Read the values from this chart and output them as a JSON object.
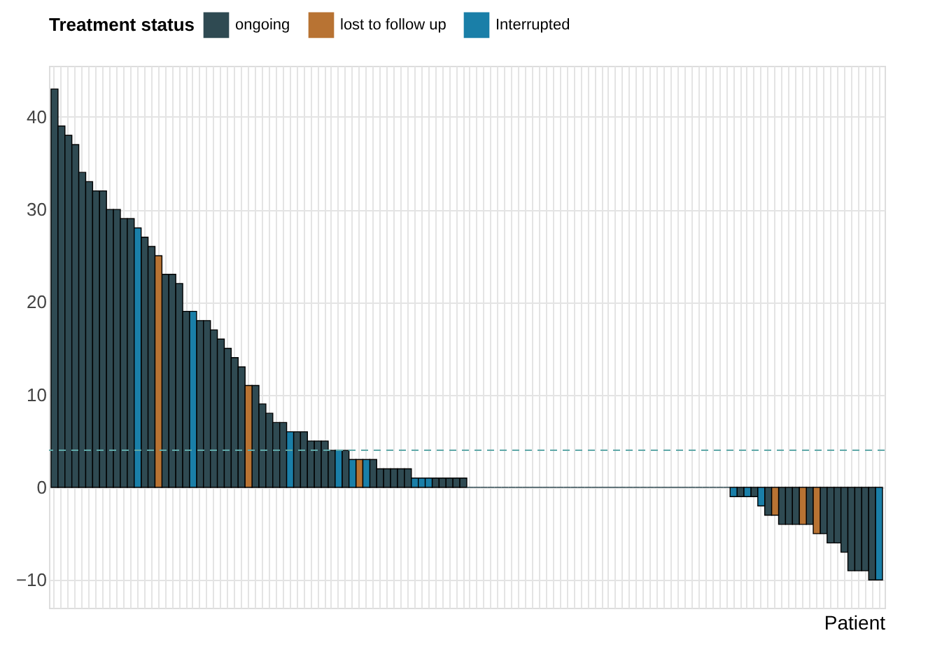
{
  "chart_data": {
    "type": "bar",
    "xlabel": "Patient",
    "legend_title": "Treatment status",
    "categories": [
      null,
      null,
      null,
      null,
      null,
      null,
      null,
      null,
      null,
      null,
      null,
      null,
      null,
      null,
      null,
      null,
      null,
      null,
      null,
      null,
      null,
      null,
      null,
      null,
      null,
      null,
      null,
      null,
      null,
      null,
      null,
      null,
      null,
      null,
      null,
      null,
      null,
      null,
      null,
      null,
      null,
      null,
      null,
      null,
      null,
      null,
      null,
      null,
      null,
      null,
      null,
      null,
      null,
      null,
      null,
      null,
      null,
      null,
      null,
      null,
      null,
      null,
      null,
      null,
      null,
      null,
      null,
      null,
      null,
      null,
      null,
      null,
      null,
      null,
      null,
      null,
      null,
      null,
      null,
      null,
      null,
      null,
      null,
      null,
      null,
      null,
      null,
      null,
      null,
      null,
      null,
      null,
      null,
      null,
      null,
      null,
      null,
      null,
      null,
      null,
      null,
      null,
      null,
      null,
      null,
      null,
      null,
      null,
      null,
      null,
      null,
      null,
      null,
      null,
      null,
      null,
      null,
      null,
      null,
      null
    ],
    "series": [
      {
        "name": "ongoing",
        "color": "#2f4a52",
        "values": [
          43,
          39,
          38,
          37,
          34,
          33,
          32,
          32,
          30,
          30,
          29,
          29,
          null,
          27,
          26,
          null,
          23,
          23,
          22,
          19,
          null,
          18,
          18,
          17,
          16,
          15,
          14,
          13,
          null,
          11,
          9,
          8,
          7,
          7,
          null,
          6,
          6,
          5,
          5,
          5,
          4,
          null,
          4,
          null,
          null,
          null,
          3,
          2,
          2,
          2,
          2,
          2,
          null,
          null,
          null,
          1,
          1,
          1,
          1,
          1,
          0,
          0,
          0,
          0,
          0,
          0,
          0,
          0,
          0,
          0,
          0,
          0,
          0,
          0,
          0,
          0,
          0,
          0,
          0,
          0,
          0,
          0,
          0,
          0,
          0,
          0,
          0,
          0,
          0,
          0,
          0,
          0,
          0,
          0,
          0,
          0,
          0,
          0,
          null,
          -1,
          null,
          -1,
          null,
          -3,
          null,
          -4,
          -4,
          -4,
          null,
          -4,
          null,
          -5,
          -6,
          -6,
          -7,
          -9,
          -9,
          -9,
          -10,
          null
        ]
      },
      {
        "name": "lost to follow up",
        "color": "#b87333",
        "values": [
          null,
          null,
          null,
          null,
          null,
          null,
          null,
          null,
          null,
          null,
          null,
          null,
          null,
          null,
          null,
          25,
          null,
          null,
          null,
          null,
          null,
          null,
          null,
          null,
          null,
          null,
          null,
          null,
          11,
          null,
          null,
          null,
          null,
          null,
          null,
          null,
          null,
          null,
          null,
          null,
          null,
          null,
          null,
          null,
          3,
          null,
          null,
          null,
          null,
          null,
          null,
          null,
          null,
          null,
          null,
          null,
          null,
          null,
          null,
          null,
          null,
          null,
          null,
          null,
          null,
          null,
          null,
          null,
          null,
          null,
          null,
          null,
          null,
          null,
          null,
          null,
          null,
          null,
          null,
          null,
          null,
          null,
          null,
          null,
          null,
          null,
          null,
          null,
          null,
          null,
          null,
          null,
          null,
          null,
          null,
          null,
          null,
          null,
          null,
          null,
          null,
          null,
          null,
          null,
          -3,
          null,
          null,
          null,
          -4,
          null,
          -5,
          null,
          null,
          null,
          null,
          null,
          null,
          null,
          null,
          null
        ]
      },
      {
        "name": "Interrupted",
        "color": "#1a7fa8",
        "values": [
          null,
          null,
          null,
          null,
          null,
          null,
          null,
          null,
          null,
          null,
          null,
          null,
          28,
          null,
          null,
          null,
          null,
          null,
          null,
          null,
          19,
          null,
          null,
          null,
          null,
          null,
          null,
          null,
          null,
          null,
          null,
          null,
          null,
          null,
          6,
          null,
          null,
          null,
          null,
          null,
          null,
          4,
          null,
          3,
          null,
          3,
          null,
          null,
          null,
          null,
          null,
          null,
          1,
          1,
          1,
          null,
          null,
          null,
          null,
          null,
          null,
          null,
          null,
          null,
          null,
          null,
          null,
          null,
          null,
          null,
          null,
          null,
          null,
          null,
          null,
          null,
          null,
          null,
          null,
          null,
          null,
          null,
          null,
          null,
          null,
          null,
          null,
          null,
          null,
          null,
          null,
          null,
          null,
          null,
          null,
          null,
          null,
          null,
          -1,
          null,
          -1,
          null,
          -2,
          null,
          null,
          null,
          null,
          null,
          null,
          null,
          null,
          null,
          null,
          null,
          null,
          null,
          null,
          null,
          null,
          -10
        ]
      }
    ],
    "ylim": [
      -13,
      45.5
    ],
    "yticks": [
      -10,
      0,
      10,
      20,
      30,
      40
    ],
    "ref_lines": [
      {
        "axis": "y",
        "value": 4,
        "color": "#5fa8a8",
        "line_style": "dashed"
      }
    ],
    "grid": true,
    "legend": "top",
    "tick_labels": "y"
  }
}
